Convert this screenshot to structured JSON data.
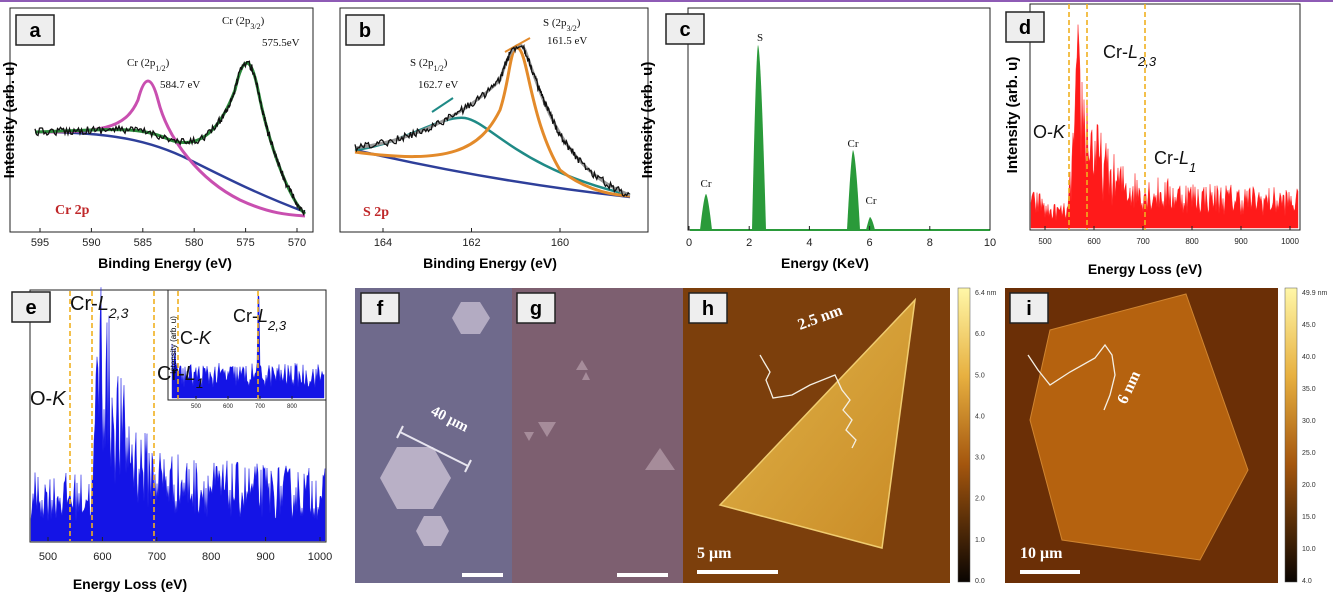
{
  "figure": {
    "panels": {
      "a": {
        "label": "a",
        "x_title": "Binding Energy (eV)",
        "y_title": "Intensity (arb. u)",
        "xticks": [
          595,
          590,
          585,
          580,
          575,
          570
        ],
        "tag": "Cr 2p",
        "notes": [
          {
            "pre": "Cr (2p",
            "sub": "1/2",
            "end": ")"
          },
          "584.7 eV",
          {
            "pre": "Cr (2p",
            "sub": "3/2",
            "end": ")"
          },
          "575.5eV"
        ]
      },
      "b": {
        "label": "b",
        "x_title": "Binding Energy (eV)",
        "xticks": [
          164,
          162,
          160
        ],
        "tag": "S 2p",
        "notes": [
          {
            "pre": "S (2p",
            "sub": "1/2",
            "end": ")"
          },
          "162.7 eV",
          {
            "pre": "S (2p",
            "sub": "3/2",
            "end": ")"
          },
          "161.5 eV"
        ]
      },
      "c": {
        "label": "c",
        "x_title": "Energy (KeV)",
        "y_title": "Intensity (arb. u)",
        "xticks": [
          0,
          2,
          4,
          6,
          8,
          10
        ],
        "notes": [
          "Cr",
          "S",
          "Cr",
          "Cr"
        ]
      },
      "d": {
        "label": "d",
        "x_title": "Energy Loss (eV)",
        "y_title": "Intensity (arb. u)",
        "xticks": [
          500,
          600,
          700,
          800,
          900,
          1000
        ],
        "notes": [
          {
            "pre": "O-",
            "it": "K"
          },
          {
            "pre": "Cr-",
            "it": "L",
            "sub": "2,3"
          },
          {
            "pre": "Cr-",
            "it": "L",
            "sub": "1"
          }
        ]
      },
      "e": {
        "label": "e",
        "x_title": "Energy Loss (eV)",
        "xticks": [
          500,
          600,
          700,
          800,
          900,
          1000
        ],
        "notes": [
          {
            "pre": "O-",
            "it": "K"
          },
          {
            "pre": "Cr-",
            "it": "L",
            "sub": "2,3"
          },
          {
            "pre": "Cr-",
            "it": "L",
            "sub": "1"
          }
        ],
        "inset": {
          "y_title": "Intensity (arb. u)",
          "xticks": [
            500,
            600,
            700,
            800
          ],
          "notes": [
            {
              "pre": "C-",
              "it": "K"
            },
            {
              "pre": "Cr-",
              "it": "L",
              "sub": "2,3"
            }
          ]
        }
      },
      "f": {
        "label": "f",
        "notes": [
          "40 μm"
        ]
      },
      "g": {
        "label": "g"
      },
      "h": {
        "label": "h",
        "notes": [
          "2.5 nm",
          "5 μm"
        ],
        "colorbar": [
          "6.4 nm",
          "6.0",
          "5.0",
          "4.0",
          "3.0",
          "2.0",
          "1.0",
          "0.0"
        ]
      },
      "i": {
        "label": "i",
        "notes": [
          "6 nm",
          "10 μm"
        ],
        "colorbar": [
          "49.9 nm",
          "45.0",
          "40.0",
          "35.0",
          "30.0",
          "25.0",
          "20.0",
          "15.0",
          "10.0",
          "4.0"
        ]
      }
    }
  }
}
